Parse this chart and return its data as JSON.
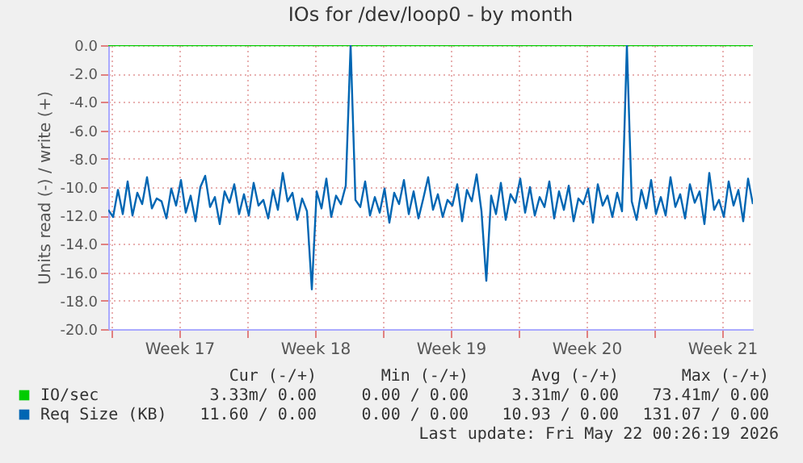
{
  "chart_data": {
    "type": "line",
    "title": "IOs for /dev/loop0 - by month",
    "ylabel": "Units read (-) / write (+)",
    "x": [
      "2026-04-19T20:00",
      "2026-04-20T02:00",
      "2026-04-20T08:00",
      "2026-04-20T14:00",
      "2026-04-20T20:00",
      "2026-04-21T02:00",
      "2026-04-21T08:00",
      "2026-04-21T14:00",
      "2026-04-21T20:00",
      "2026-04-22T02:00",
      "2026-04-22T08:00",
      "2026-04-22T14:00",
      "2026-04-22T20:00",
      "2026-04-23T02:00",
      "2026-04-23T08:00",
      "2026-04-23T14:00",
      "2026-04-23T20:00",
      "2026-04-24T02:00",
      "2026-04-24T08:00",
      "2026-04-24T14:00",
      "2026-04-24T20:00",
      "2026-04-25T02:00",
      "2026-04-25T08:00",
      "2026-04-25T14:00",
      "2026-04-25T20:00",
      "2026-04-26T02:00",
      "2026-04-26T08:00",
      "2026-04-26T14:00",
      "2026-04-26T20:00",
      "2026-04-27T02:00",
      "2026-04-27T08:00",
      "2026-04-27T14:00",
      "2026-04-27T20:00",
      "2026-04-28T02:00",
      "2026-04-28T08:00",
      "2026-04-28T14:00",
      "2026-04-28T20:00",
      "2026-04-29T02:00",
      "2026-04-29T08:00",
      "2026-04-29T14:00",
      "2026-04-29T20:00",
      "2026-04-30T02:00",
      "2026-04-30T08:00",
      "2026-04-30T14:00",
      "2026-04-30T20:00",
      "2026-05-01T02:00",
      "2026-05-01T08:00",
      "2026-05-01T14:00",
      "2026-05-01T20:00",
      "2026-05-02T02:00",
      "2026-05-02T08:00",
      "2026-05-02T14:00",
      "2026-05-02T20:00",
      "2026-05-03T02:00",
      "2026-05-03T08:00",
      "2026-05-03T14:00",
      "2026-05-03T20:00",
      "2026-05-04T02:00",
      "2026-05-04T08:00",
      "2026-05-04T14:00",
      "2026-05-04T20:00",
      "2026-05-05T02:00",
      "2026-05-05T08:00",
      "2026-05-05T14:00",
      "2026-05-05T20:00",
      "2026-05-06T02:00",
      "2026-05-06T08:00",
      "2026-05-06T14:00",
      "2026-05-06T20:00",
      "2026-05-07T02:00",
      "2026-05-07T08:00",
      "2026-05-07T14:00",
      "2026-05-07T20:00",
      "2026-05-08T02:00",
      "2026-05-08T08:00",
      "2026-05-08T14:00",
      "2026-05-08T20:00",
      "2026-05-09T02:00",
      "2026-05-09T08:00",
      "2026-05-09T14:00",
      "2026-05-09T20:00",
      "2026-05-10T02:00",
      "2026-05-10T08:00",
      "2026-05-10T14:00",
      "2026-05-10T20:00",
      "2026-05-11T02:00",
      "2026-05-11T08:00",
      "2026-05-11T14:00",
      "2026-05-11T20:00",
      "2026-05-12T02:00",
      "2026-05-12T08:00",
      "2026-05-12T14:00",
      "2026-05-12T20:00",
      "2026-05-13T02:00",
      "2026-05-13T08:00",
      "2026-05-13T14:00",
      "2026-05-13T20:00",
      "2026-05-14T02:00",
      "2026-05-14T08:00",
      "2026-05-14T14:00",
      "2026-05-14T20:00",
      "2026-05-15T02:00",
      "2026-05-15T08:00",
      "2026-05-15T14:00",
      "2026-05-15T20:00",
      "2026-05-16T02:00",
      "2026-05-16T08:00",
      "2026-05-16T14:00",
      "2026-05-16T20:00",
      "2026-05-17T02:00",
      "2026-05-17T08:00",
      "2026-05-17T14:00",
      "2026-05-17T20:00",
      "2026-05-18T02:00",
      "2026-05-18T08:00",
      "2026-05-18T14:00",
      "2026-05-18T20:00",
      "2026-05-19T02:00",
      "2026-05-19T08:00",
      "2026-05-19T14:00",
      "2026-05-19T20:00",
      "2026-05-20T02:00",
      "2026-05-20T08:00",
      "2026-05-20T14:00",
      "2026-05-20T20:00",
      "2026-05-21T02:00",
      "2026-05-21T08:00",
      "2026-05-21T14:00",
      "2026-05-21T20:00",
      "2026-05-22T02:00",
      "2026-05-22T08:00",
      "2026-05-22T14:00",
      "2026-05-22T20:00",
      "2026-05-23T02:00"
    ],
    "series": [
      {
        "name": "IO/sec",
        "color": "#00cc00",
        "x": [
          "2026-04-19T20:00",
          "2026-05-23T02:00"
        ],
        "values": [
          0,
          0
        ]
      },
      {
        "name": "Req Size (KB)",
        "color": "#0066b3",
        "values": [
          -11.6,
          -12.1,
          -10.2,
          -11.9,
          -9.6,
          -12.0,
          -10.4,
          -11.2,
          -9.3,
          -11.5,
          -10.8,
          -11.0,
          -12.2,
          -10.1,
          -11.3,
          -9.5,
          -11.8,
          -10.6,
          -12.4,
          -10.0,
          -9.2,
          -11.4,
          -10.7,
          -12.6,
          -10.3,
          -11.1,
          -9.8,
          -11.9,
          -10.5,
          -12.0,
          -9.7,
          -11.3,
          -10.9,
          -12.2,
          -10.2,
          -11.6,
          -9.0,
          -11.0,
          -10.4,
          -12.3,
          -10.8,
          -11.7,
          -17.2,
          -10.3,
          -11.5,
          -9.4,
          -12.1,
          -10.6,
          -11.2,
          -9.9,
          0.0,
          -10.9,
          -11.4,
          -9.6,
          -12.0,
          -10.7,
          -11.8,
          -10.1,
          -12.5,
          -10.4,
          -11.2,
          -9.5,
          -11.9,
          -10.3,
          -12.2,
          -10.8,
          -9.3,
          -11.6,
          -10.5,
          -12.1,
          -10.9,
          -11.3,
          -9.8,
          -12.4,
          -10.2,
          -11.0,
          -9.1,
          -11.7,
          -16.6,
          -10.6,
          -11.9,
          -9.7,
          -12.3,
          -10.5,
          -11.1,
          -9.4,
          -11.8,
          -10.0,
          -12.0,
          -10.7,
          -11.4,
          -9.6,
          -12.2,
          -10.3,
          -11.6,
          -9.9,
          -12.4,
          -10.8,
          -11.2,
          -10.1,
          -12.5,
          -9.8,
          -11.3,
          -10.6,
          -12.1,
          -10.4,
          -11.7,
          0.0,
          -11.0,
          -12.3,
          -10.2,
          -11.5,
          -9.5,
          -11.9,
          -10.7,
          -12.0,
          -9.3,
          -11.4,
          -10.5,
          -12.2,
          -9.8,
          -11.1,
          -10.3,
          -12.6,
          -9.0,
          -11.6,
          -10.9,
          -12.1,
          -9.6,
          -11.3,
          -10.2,
          -12.4,
          -9.4,
          -11.2
        ]
      }
    ],
    "xlim": [
      "2026-04-19T20:00",
      "2026-05-23T02:00"
    ],
    "xticks": [
      {
        "value": "2026-04-20",
        "label": null
      },
      {
        "value": "2026-04-23T12:00",
        "label": "Week 17"
      },
      {
        "value": "2026-04-27",
        "label": null
      },
      {
        "value": "2026-04-30T12:00",
        "label": "Week 18"
      },
      {
        "value": "2026-05-04",
        "label": null
      },
      {
        "value": "2026-05-07T12:00",
        "label": "Week 19"
      },
      {
        "value": "2026-05-11",
        "label": null
      },
      {
        "value": "2026-05-14T12:00",
        "label": "Week 20"
      },
      {
        "value": "2026-05-18",
        "label": null
      },
      {
        "value": "2026-05-21T12:00",
        "label": "Week 21"
      }
    ],
    "ylim": [
      -20,
      0
    ],
    "yticks": [
      {
        "value": 0,
        "label": "0.0"
      },
      {
        "value": -2,
        "label": "-2.0"
      },
      {
        "value": -4,
        "label": "-4.0"
      },
      {
        "value": -6,
        "label": "-6.0"
      },
      {
        "value": -8,
        "label": "-8.0"
      },
      {
        "value": -10,
        "label": "-10.0"
      },
      {
        "value": -12,
        "label": "-12.0"
      },
      {
        "value": -14,
        "label": "-14.0"
      },
      {
        "value": -16,
        "label": "-16.0"
      },
      {
        "value": -18,
        "label": "-18.0"
      },
      {
        "value": -20,
        "label": "-20.0"
      }
    ],
    "grid": true,
    "legend": "bottom",
    "marker": "none",
    "line_style": "solid",
    "annotations": [
      "Cur (-/+)",
      "Min (-/+)",
      "Avg (-/+)",
      "Max (-/+)",
      "3.33m/ 0.00",
      "0.00 / 0.00",
      "3.31m/ 0.00",
      "73.41m/ 0.00",
      "11.60 / 0.00",
      "0.00 / 0.00",
      "10.93 / 0.00",
      "131.07 / 0.00",
      "Last update: Fri May 22 00:26:19 2026"
    ]
  }
}
